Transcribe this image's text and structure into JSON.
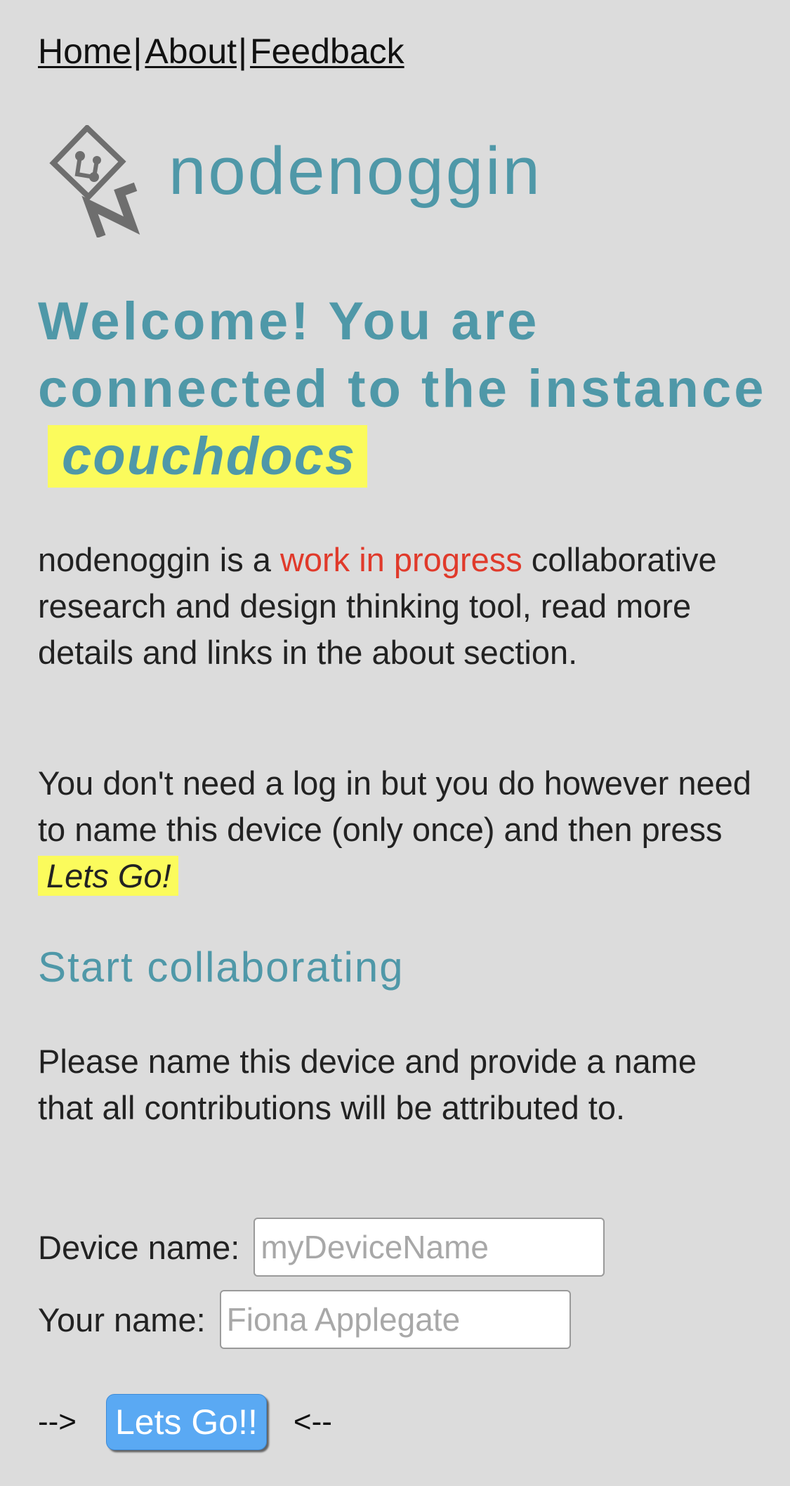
{
  "nav": {
    "items": [
      {
        "label": "Home"
      },
      {
        "label": "About"
      },
      {
        "label": "Feedback"
      }
    ],
    "separator": "|"
  },
  "brand": {
    "name": "nodenoggin",
    "logo_icon": "nodenoggin-logo-icon",
    "color": "#4f98a8"
  },
  "welcome": {
    "text": "Welcome! You are connected to the instance",
    "instance_name": "couchdocs",
    "highlight_color": "#fbfb5c"
  },
  "intro": {
    "part1": "nodenoggin is a ",
    "wip": "work in progress",
    "part2": " collaborative research and design thinking tool, read more details and links in the about section.",
    "wip_color": "#e03a2b"
  },
  "instructions": {
    "text": "You don't need a log in but you do however need to name this device (only once) and then press ",
    "button_ref": "Lets Go!"
  },
  "section": {
    "title": "Start collaborating"
  },
  "prompt": {
    "text": "Please name this device and provide a name that all contributions will be attributed to."
  },
  "form": {
    "device_label": "Device name:",
    "device_placeholder": "myDeviceName",
    "device_value": "",
    "user_label": "Your name:",
    "user_placeholder": "Fiona Applegate",
    "user_value": ""
  },
  "action": {
    "left_arrow": "-->",
    "button_label": "Lets Go!!",
    "right_arrow": "<--",
    "button_color": "#5aa9f3"
  }
}
